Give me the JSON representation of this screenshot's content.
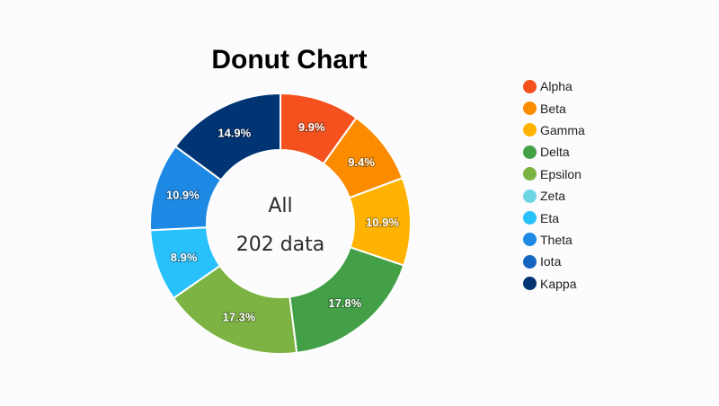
{
  "chart_data": {
    "type": "pie",
    "title": "Donut Chart",
    "center_text": [
      "All",
      "202 data"
    ],
    "categories": [
      "Alpha",
      "Beta",
      "Gamma",
      "Delta",
      "Epsilon",
      "Zeta",
      "Eta",
      "Theta",
      "Iota",
      "Kappa"
    ],
    "values": [
      9.9,
      9.4,
      10.9,
      17.8,
      17.3,
      0,
      8.9,
      10.9,
      0,
      14.9
    ],
    "value_labels": [
      "9.9%",
      "9.4%",
      "10.9%",
      "17.8%",
      "17.3%",
      "",
      "8.9%",
      "10.9%",
      "",
      "14.9%"
    ],
    "colors": [
      "#f4511e",
      "#fb8c00",
      "#ffb300",
      "#43a047",
      "#7cb342",
      "#6dd6e4",
      "#29c1fb",
      "#1e88e5",
      "#1565c0",
      "#003473"
    ],
    "legend_position": "right"
  }
}
